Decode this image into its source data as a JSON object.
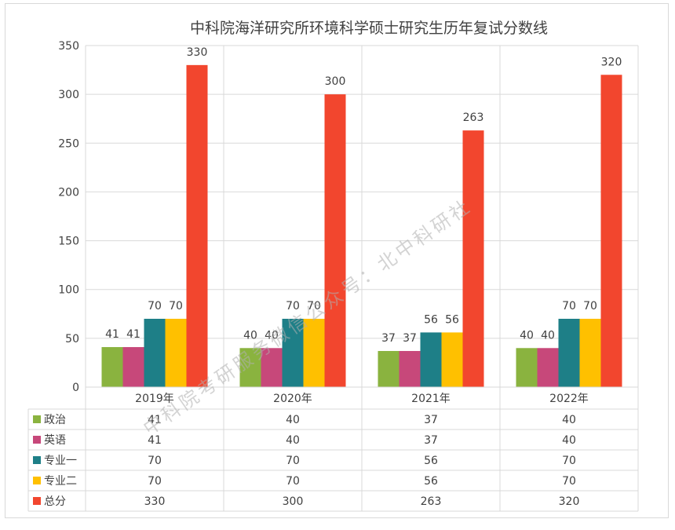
{
  "chart_data": {
    "type": "bar",
    "title": "中科院海洋研究所环境科学硕士研究生历年复试分数线",
    "categories": [
      "2019年",
      "2020年",
      "2021年",
      "2022年"
    ],
    "ylim": [
      0,
      350
    ],
    "yticks": [
      0,
      50,
      100,
      150,
      200,
      250,
      300,
      350
    ],
    "grid": true,
    "legend": "data-table",
    "series": [
      {
        "name": "政治",
        "color": "#8ab33f",
        "values": [
          41,
          40,
          37,
          40
        ]
      },
      {
        "name": "英语",
        "color": "#c7487a",
        "values": [
          41,
          40,
          37,
          40
        ]
      },
      {
        "name": "专业一",
        "color": "#1e7f87",
        "values": [
          70,
          70,
          56,
          70
        ]
      },
      {
        "name": "专业二",
        "color": "#ffc000",
        "values": [
          70,
          70,
          56,
          70
        ]
      },
      {
        "name": "总分",
        "color": "#f2462e",
        "values": [
          330,
          300,
          263,
          320
        ]
      }
    ]
  },
  "watermark": "中科院考研服务微信公众号：北中科研社"
}
